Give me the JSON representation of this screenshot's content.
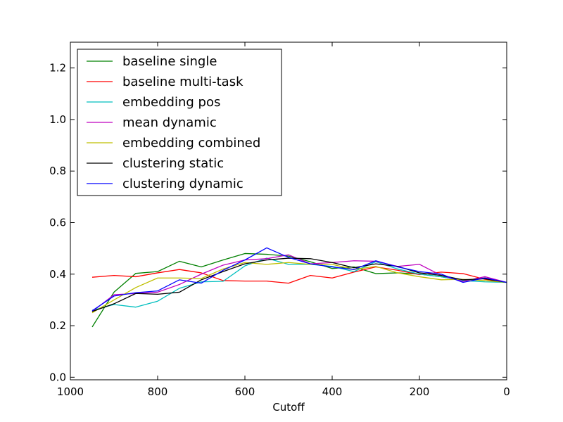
{
  "chart_data": {
    "type": "line",
    "title": "",
    "xlabel": "Cutoff",
    "ylabel": "",
    "xlim": [
      1000,
      0
    ],
    "ylim": [
      -0.01,
      1.3
    ],
    "x_inverted": true,
    "grid": false,
    "legend_position": "top-left",
    "xticks": [
      1000,
      800,
      600,
      400,
      200,
      0
    ],
    "xtick_labels": [
      "1000",
      "800",
      "600",
      "400",
      "200",
      "0"
    ],
    "yticks": [
      0.0,
      0.2,
      0.4,
      0.6,
      0.8,
      1.0,
      1.2
    ],
    "ytick_labels": [
      "0.0",
      "0.2",
      "0.4",
      "0.6",
      "0.8",
      "1.0",
      "1.2"
    ],
    "x": [
      950,
      900,
      850,
      800,
      750,
      700,
      650,
      600,
      550,
      500,
      450,
      400,
      350,
      300,
      250,
      200,
      150,
      100,
      50,
      0
    ],
    "series": [
      {
        "name": "baseline single",
        "color": "#008000",
        "values": [
          0.195,
          0.33,
          0.403,
          0.41,
          0.45,
          0.428,
          0.455,
          0.48,
          0.477,
          0.47,
          0.448,
          0.422,
          0.428,
          0.402,
          0.405,
          0.4,
          0.39,
          0.375,
          0.385,
          0.368
        ]
      },
      {
        "name": "baseline multi-task",
        "color": "#ff0000",
        "values": [
          0.388,
          0.395,
          0.39,
          0.405,
          0.418,
          0.405,
          0.375,
          0.373,
          0.373,
          0.365,
          0.395,
          0.385,
          0.408,
          0.428,
          0.415,
          0.398,
          0.408,
          0.402,
          0.38,
          0.368
        ]
      },
      {
        "name": "embedding pos",
        "color": "#00bfbf",
        "values": [
          0.26,
          0.282,
          0.272,
          0.295,
          0.345,
          0.37,
          0.372,
          0.432,
          0.462,
          0.438,
          0.438,
          0.43,
          0.41,
          0.448,
          0.42,
          0.4,
          0.39,
          0.375,
          0.37,
          0.368
        ]
      },
      {
        "name": "mean dynamic",
        "color": "#bf00bf",
        "values": [
          0.255,
          0.32,
          0.325,
          0.33,
          0.36,
          0.4,
          0.435,
          0.455,
          0.46,
          0.475,
          0.44,
          0.445,
          0.452,
          0.45,
          0.43,
          0.438,
          0.395,
          0.372,
          0.39,
          0.368
        ]
      },
      {
        "name": "embedding combined",
        "color": "#bfbf00",
        "values": [
          0.25,
          0.3,
          0.348,
          0.385,
          0.385,
          0.383,
          0.42,
          0.445,
          0.438,
          0.445,
          0.438,
          0.438,
          0.418,
          0.43,
          0.405,
          0.39,
          0.378,
          0.38,
          0.375,
          0.368
        ]
      },
      {
        "name": "clustering static",
        "color": "#000000",
        "values": [
          0.255,
          0.285,
          0.325,
          0.322,
          0.33,
          0.378,
          0.41,
          0.44,
          0.455,
          0.462,
          0.46,
          0.445,
          0.425,
          0.44,
          0.43,
          0.405,
          0.395,
          0.378,
          0.382,
          0.368
        ]
      },
      {
        "name": "clustering dynamic",
        "color": "#0000ff",
        "values": [
          0.258,
          0.315,
          0.328,
          0.335,
          0.378,
          0.365,
          0.415,
          0.455,
          0.502,
          0.465,
          0.44,
          0.428,
          0.418,
          0.452,
          0.428,
          0.41,
          0.4,
          0.368,
          0.385,
          0.368
        ]
      }
    ]
  }
}
